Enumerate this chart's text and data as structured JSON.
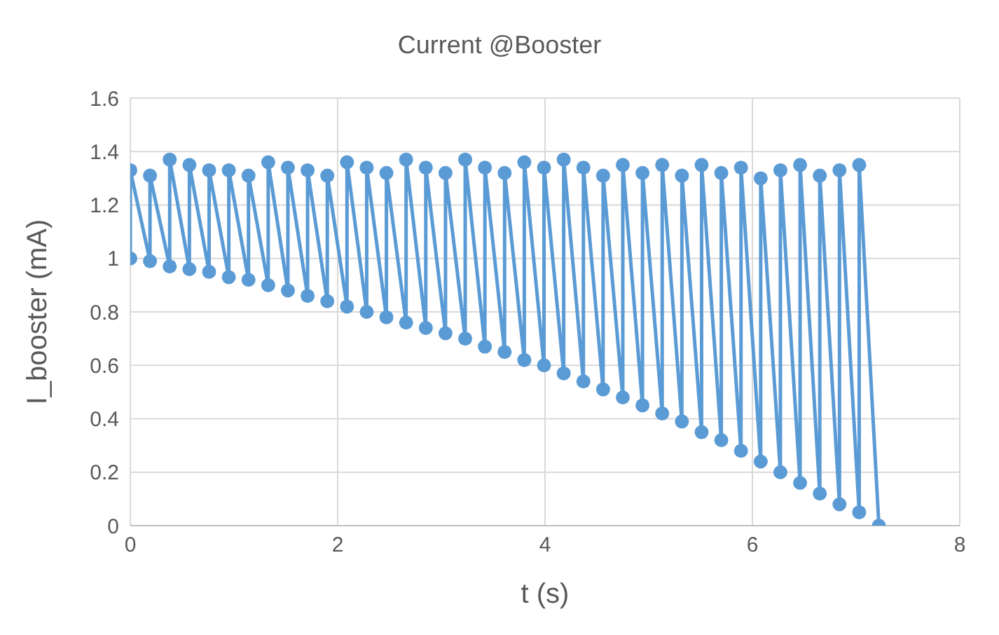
{
  "chart_data": {
    "type": "line",
    "title": "Current @Booster",
    "xlabel": "t (s)",
    "ylabel": "I_booster (mA)",
    "x": [
      0,
      0,
      0.19,
      0.19,
      0.38,
      0.38,
      0.57,
      0.57,
      0.76,
      0.76,
      0.95,
      0.95,
      1.14,
      1.14,
      1.33,
      1.33,
      1.52,
      1.52,
      1.71,
      1.71,
      1.9,
      1.9,
      2.09,
      2.09,
      2.28,
      2.28,
      2.47,
      2.47,
      2.66,
      2.66,
      2.85,
      2.85,
      3.04,
      3.04,
      3.23,
      3.23,
      3.42,
      3.42,
      3.61,
      3.61,
      3.8,
      3.8,
      3.99,
      3.99,
      4.18,
      4.18,
      4.37,
      4.37,
      4.56,
      4.56,
      4.75,
      4.75,
      4.94,
      4.94,
      5.13,
      5.13,
      5.32,
      5.32,
      5.51,
      5.51,
      5.7,
      5.7,
      5.89,
      5.89,
      6.08,
      6.08,
      6.27,
      6.27,
      6.46,
      6.46,
      6.65,
      6.65,
      6.84,
      6.84,
      7.03,
      7.03,
      7.22
    ],
    "series": [
      {
        "color": "#5b9bd5",
        "values": [
          1.0,
          1.33,
          0.99,
          1.31,
          0.97,
          1.37,
          0.96,
          1.35,
          0.95,
          1.33,
          0.93,
          1.33,
          0.92,
          1.31,
          0.9,
          1.36,
          0.88,
          1.34,
          0.86,
          1.33,
          0.84,
          1.31,
          0.82,
          1.36,
          0.8,
          1.34,
          0.78,
          1.32,
          0.76,
          1.37,
          0.74,
          1.34,
          0.72,
          1.32,
          0.7,
          1.37,
          0.67,
          1.34,
          0.65,
          1.32,
          0.62,
          1.36,
          0.6,
          1.34,
          0.57,
          1.37,
          0.54,
          1.34,
          0.51,
          1.31,
          0.48,
          1.35,
          0.45,
          1.32,
          0.42,
          1.35,
          0.39,
          1.31,
          0.35,
          1.35,
          0.32,
          1.32,
          0.28,
          1.34,
          0.24,
          1.3,
          0.2,
          1.33,
          0.16,
          1.35,
          0.12,
          1.31,
          0.08,
          1.33,
          0.05,
          1.35,
          0
        ]
      }
    ],
    "xlim": [
      0,
      8
    ],
    "xticks": [
      0,
      2,
      4,
      6,
      8
    ],
    "ylim": [
      0,
      1.6
    ],
    "yticks": [
      0,
      0.2,
      0.4,
      0.6,
      0.8,
      1,
      1.2,
      1.4,
      1.6
    ],
    "grid": true,
    "marker": "circle",
    "line_style": "solid",
    "legend": false
  }
}
